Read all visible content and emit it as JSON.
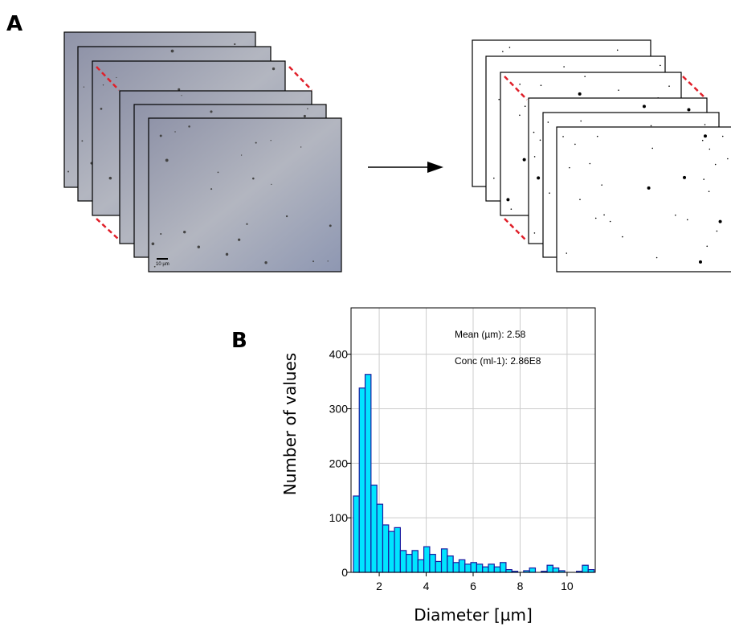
{
  "panel_a": {
    "label": "A",
    "scale_bar": "10 µm"
  },
  "chart_data": {
    "type": "histogram",
    "panel_label": "B",
    "x_label": "Diameter [µm]",
    "y_label": "Number of values",
    "annotations": [
      "Mean (µm): 2.58",
      "Conc (ml-1): 2.86E8"
    ],
    "bins": [
      0.9,
      1.15,
      1.4,
      1.65,
      1.9,
      2.15,
      2.4,
      2.65,
      2.9,
      3.15,
      3.4,
      3.65,
      3.9,
      4.15,
      4.4,
      4.65,
      4.9,
      5.15,
      5.4,
      5.65,
      5.9,
      6.15,
      6.4,
      6.65,
      6.9,
      7.15,
      7.4,
      7.65,
      7.9,
      8.15,
      8.4,
      8.65,
      8.9,
      9.15,
      9.4,
      9.65,
      9.9,
      10.15,
      10.4,
      10.65,
      10.9,
      11.15
    ],
    "values": [
      140,
      338,
      363,
      160,
      125,
      87,
      75,
      82,
      40,
      33,
      40,
      23,
      47,
      33,
      20,
      43,
      30,
      18,
      23,
      15,
      18,
      15,
      10,
      15,
      10,
      18,
      5,
      2,
      0,
      3,
      8,
      0,
      2,
      13,
      8,
      3,
      0,
      0,
      2,
      13,
      5
    ],
    "color": "#00e5ff",
    "edge_color": "#1a1aa0",
    "xlim": [
      0.8,
      11.2
    ],
    "xticks": [
      2,
      4,
      6,
      8,
      10
    ],
    "ylim": [
      0,
      485
    ],
    "yticks": [
      0,
      100,
      200,
      300,
      400
    ],
    "grid": true
  }
}
